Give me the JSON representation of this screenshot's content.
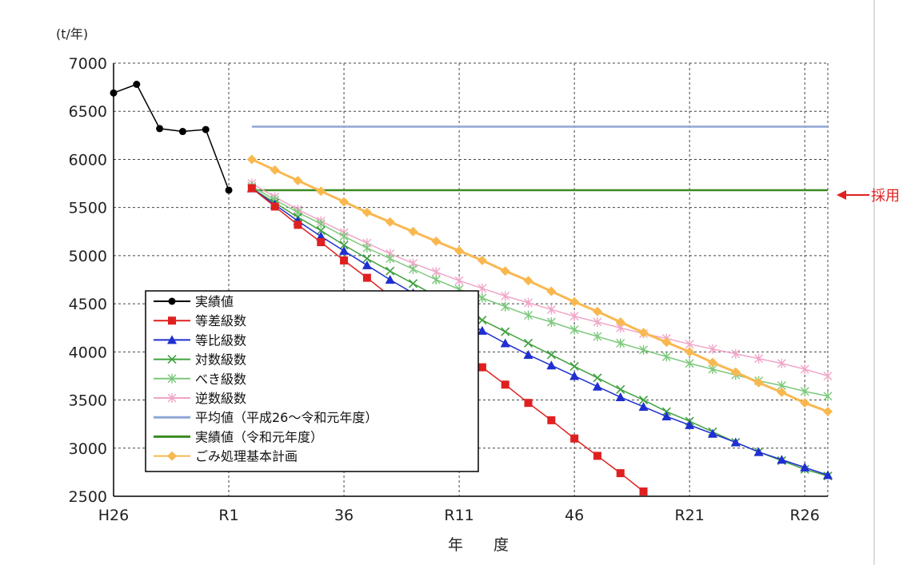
{
  "chart_data": {
    "type": "line",
    "unit_label": "(t/年)",
    "xlabel": "年　　度",
    "x_tick_labels": [
      {
        "at": 0,
        "label": "H26"
      },
      {
        "at": 5,
        "label": "R1"
      },
      {
        "at": 10,
        "label": "36"
      },
      {
        "at": 15,
        "label": "R11"
      },
      {
        "at": 20,
        "label": "46"
      },
      {
        "at": 25,
        "label": "R21"
      },
      {
        "at": 30,
        "label": "R26"
      }
    ],
    "ylim": [
      2500,
      7000
    ],
    "yticks": [
      2500,
      3000,
      3500,
      4000,
      4500,
      5000,
      5500,
      6000,
      6500,
      7000
    ],
    "xlim": [
      0,
      31
    ],
    "grid": true,
    "legend_position": "bottom-left",
    "annotation": {
      "text": "採用",
      "target_series": "実績値（令和元年度）"
    },
    "series": [
      {
        "name": "実績値",
        "color": "#000000",
        "marker": "circle",
        "x": [
          0,
          1,
          2,
          3,
          4,
          5
        ],
        "y": [
          6690,
          6780,
          6320,
          6290,
          6310,
          5680
        ]
      },
      {
        "name": "等差級数",
        "color": "#e02020",
        "marker": "square",
        "x": [
          6,
          7,
          8,
          9,
          10,
          11,
          12,
          13,
          14,
          15,
          16,
          17,
          18,
          19,
          20,
          21,
          22,
          23
        ],
        "y": [
          5700,
          5510,
          5320,
          5140,
          4950,
          4770,
          4580,
          4400,
          4210,
          4030,
          3840,
          3660,
          3470,
          3290,
          3100,
          2920,
          2740,
          2550
        ]
      },
      {
        "name": "等比級数",
        "color": "#1f2fd0",
        "marker": "triangle",
        "x": [
          6,
          7,
          8,
          9,
          10,
          11,
          12,
          13,
          14,
          15,
          16,
          17,
          18,
          19,
          20,
          21,
          22,
          23,
          24,
          25,
          26,
          27,
          28,
          29,
          30,
          31
        ],
        "y": [
          5700,
          5530,
          5360,
          5200,
          5050,
          4900,
          4750,
          4610,
          4470,
          4340,
          4220,
          4090,
          3970,
          3860,
          3750,
          3640,
          3530,
          3430,
          3330,
          3240,
          3150,
          3060,
          2960,
          2880,
          2800,
          2720
        ]
      },
      {
        "name": "対数級数",
        "color": "#3fa03f",
        "marker": "x",
        "x": [
          6,
          7,
          8,
          9,
          10,
          11,
          12,
          13,
          14,
          15,
          16,
          17,
          18,
          19,
          20,
          21,
          22,
          23,
          24,
          25,
          26,
          27,
          28,
          29,
          30,
          31
        ],
        "y": [
          5700,
          5550,
          5400,
          5260,
          5110,
          4970,
          4840,
          4710,
          4580,
          4450,
          4330,
          4210,
          4090,
          3970,
          3850,
          3730,
          3610,
          3500,
          3380,
          3280,
          3170,
          3060,
          2960,
          2870,
          2780,
          2710
        ]
      },
      {
        "name": "べき級数",
        "color": "#7cc87c",
        "marker": "asterisk",
        "x": [
          6,
          7,
          8,
          9,
          10,
          11,
          12,
          13,
          14,
          15,
          16,
          17,
          18,
          19,
          20,
          21,
          22,
          23,
          24,
          25,
          26,
          27,
          28,
          29,
          30,
          31
        ],
        "y": [
          5720,
          5580,
          5450,
          5330,
          5200,
          5080,
          4970,
          4860,
          4750,
          4650,
          4560,
          4470,
          4380,
          4310,
          4230,
          4160,
          4090,
          4020,
          3950,
          3880,
          3820,
          3760,
          3700,
          3650,
          3590,
          3540
        ]
      },
      {
        "name": "逆数級数",
        "color": "#f0a6c8",
        "marker": "asterisk",
        "x": [
          6,
          7,
          8,
          9,
          10,
          11,
          12,
          13,
          14,
          15,
          16,
          17,
          18,
          19,
          20,
          21,
          22,
          23,
          24,
          25,
          26,
          27,
          28,
          29,
          30,
          31
        ],
        "y": [
          5750,
          5610,
          5480,
          5360,
          5240,
          5130,
          5020,
          4920,
          4830,
          4740,
          4660,
          4580,
          4510,
          4440,
          4370,
          4310,
          4250,
          4190,
          4140,
          4080,
          4030,
          3980,
          3930,
          3880,
          3820,
          3750
        ]
      },
      {
        "name": "平均値（平成26～令和元年度）",
        "color": "#8fa6d6",
        "marker": "none",
        "x": [
          6,
          31
        ],
        "y": [
          6340,
          6340
        ]
      },
      {
        "name": "実績値（令和元年度）",
        "color": "#3a8a22",
        "marker": "none",
        "x": [
          6,
          31
        ],
        "y": [
          5680,
          5680
        ]
      },
      {
        "name": "ごみ処理基本計画",
        "color": "#f9b84f",
        "marker": "diamond",
        "x": [
          6,
          7,
          8,
          9,
          10,
          11,
          12,
          13,
          14,
          15,
          16,
          17,
          18,
          19,
          20,
          21,
          22,
          23,
          24,
          25,
          26,
          27,
          28,
          29,
          30,
          31
        ],
        "y": [
          6000,
          5890,
          5780,
          5670,
          5560,
          5450,
          5350,
          5250,
          5150,
          5050,
          4950,
          4840,
          4740,
          4630,
          4520,
          4420,
          4310,
          4200,
          4100,
          4000,
          3890,
          3790,
          3680,
          3580,
          3470,
          3380
        ]
      }
    ]
  }
}
